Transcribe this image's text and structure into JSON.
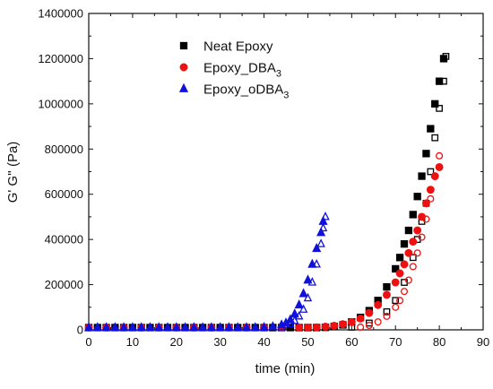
{
  "chart_data": {
    "type": "scatter",
    "xlabel": "time (min)",
    "ylabel": "G' G'' (Pa)",
    "xlim": [
      0,
      90
    ],
    "ylim": [
      0,
      1400000
    ],
    "x_ticks": [
      0,
      10,
      20,
      30,
      40,
      50,
      60,
      70,
      80,
      90
    ],
    "y_ticks": [
      0,
      200000,
      400000,
      600000,
      800000,
      1000000,
      1200000,
      1400000
    ],
    "grid": false,
    "legend_position": "top-right",
    "series": [
      {
        "name": "Neat Epoxy",
        "color": "#000000",
        "marker": "square",
        "storage_modulus": [
          [
            0,
            10000
          ],
          [
            2,
            10000
          ],
          [
            4,
            10000
          ],
          [
            6,
            10000
          ],
          [
            8,
            10000
          ],
          [
            10,
            10000
          ],
          [
            12,
            10000
          ],
          [
            14,
            10000
          ],
          [
            16,
            10000
          ],
          [
            18,
            10000
          ],
          [
            20,
            10000
          ],
          [
            22,
            10000
          ],
          [
            24,
            10000
          ],
          [
            26,
            10000
          ],
          [
            28,
            10000
          ],
          [
            30,
            10000
          ],
          [
            32,
            10000
          ],
          [
            34,
            10000
          ],
          [
            36,
            10000
          ],
          [
            38,
            10000
          ],
          [
            40,
            10000
          ],
          [
            42,
            10000
          ],
          [
            44,
            10000
          ],
          [
            46,
            10000
          ],
          [
            48,
            10000
          ],
          [
            50,
            10000
          ],
          [
            52,
            10000
          ],
          [
            54,
            11000
          ],
          [
            56,
            15000
          ],
          [
            58,
            22000
          ],
          [
            60,
            35000
          ],
          [
            62,
            55000
          ],
          [
            64,
            85000
          ],
          [
            66,
            130000
          ],
          [
            68,
            190000
          ],
          [
            70,
            270000
          ],
          [
            71,
            320000
          ],
          [
            72,
            380000
          ],
          [
            73,
            440000
          ],
          [
            74,
            510000
          ],
          [
            75,
            590000
          ],
          [
            76,
            680000
          ],
          [
            77,
            780000
          ],
          [
            78,
            890000
          ],
          [
            79,
            1000000
          ],
          [
            80,
            1100000
          ],
          [
            81,
            1200000
          ]
        ],
        "loss_modulus": [
          [
            60,
            12000
          ],
          [
            64,
            30000
          ],
          [
            68,
            80000
          ],
          [
            70,
            130000
          ],
          [
            72,
            210000
          ],
          [
            74,
            320000
          ],
          [
            75,
            400000
          ],
          [
            76,
            480000
          ],
          [
            77,
            560000
          ],
          [
            78,
            700000
          ],
          [
            79,
            850000
          ],
          [
            80,
            980000
          ],
          [
            81,
            1100000
          ],
          [
            81.5,
            1210000
          ]
        ]
      },
      {
        "name": "Epoxy_DBA",
        "name_subscript": "3",
        "color": "#ee1111",
        "marker": "circle",
        "storage_modulus": [
          [
            0,
            10000
          ],
          [
            4,
            10000
          ],
          [
            8,
            10000
          ],
          [
            12,
            10000
          ],
          [
            16,
            10000
          ],
          [
            20,
            10000
          ],
          [
            24,
            10000
          ],
          [
            28,
            10000
          ],
          [
            32,
            10000
          ],
          [
            36,
            10000
          ],
          [
            40,
            10000
          ],
          [
            44,
            10000
          ],
          [
            48,
            10000
          ],
          [
            50,
            10000
          ],
          [
            52,
            11000
          ],
          [
            54,
            14000
          ],
          [
            56,
            18000
          ],
          [
            58,
            25000
          ],
          [
            60,
            35000
          ],
          [
            62,
            50000
          ],
          [
            64,
            75000
          ],
          [
            66,
            110000
          ],
          [
            68,
            155000
          ],
          [
            70,
            210000
          ],
          [
            71,
            250000
          ],
          [
            72,
            290000
          ],
          [
            73,
            340000
          ],
          [
            74,
            390000
          ],
          [
            75,
            440000
          ],
          [
            76,
            500000
          ],
          [
            77,
            560000
          ],
          [
            78,
            620000
          ],
          [
            79,
            680000
          ],
          [
            80,
            720000
          ]
        ],
        "loss_modulus": [
          [
            62,
            12000
          ],
          [
            64,
            20000
          ],
          [
            66,
            35000
          ],
          [
            68,
            60000
          ],
          [
            70,
            100000
          ],
          [
            71,
            130000
          ],
          [
            72,
            170000
          ],
          [
            73,
            220000
          ],
          [
            74,
            280000
          ],
          [
            75,
            340000
          ],
          [
            76,
            410000
          ],
          [
            77,
            490000
          ],
          [
            78,
            580000
          ],
          [
            79,
            680000
          ],
          [
            80,
            770000
          ]
        ]
      },
      {
        "name": "Epoxy_oDBA",
        "name_subscript": "3",
        "color": "#1111dd",
        "marker": "triangle",
        "storage_modulus": [
          [
            0,
            10000
          ],
          [
            2,
            10000
          ],
          [
            4,
            10000
          ],
          [
            6,
            10000
          ],
          [
            8,
            10000
          ],
          [
            10,
            10000
          ],
          [
            12,
            10000
          ],
          [
            14,
            10000
          ],
          [
            16,
            10000
          ],
          [
            18,
            10000
          ],
          [
            20,
            10000
          ],
          [
            22,
            10000
          ],
          [
            24,
            10000
          ],
          [
            26,
            10000
          ],
          [
            28,
            10000
          ],
          [
            30,
            10000
          ],
          [
            32,
            10000
          ],
          [
            34,
            10000
          ],
          [
            36,
            10000
          ],
          [
            38,
            10000
          ],
          [
            40,
            11000
          ],
          [
            42,
            14000
          ],
          [
            44,
            22000
          ],
          [
            45,
            30000
          ],
          [
            46,
            45000
          ],
          [
            47,
            70000
          ],
          [
            48,
            110000
          ],
          [
            49,
            160000
          ],
          [
            50,
            220000
          ],
          [
            51,
            290000
          ],
          [
            52,
            360000
          ],
          [
            53,
            430000
          ],
          [
            53.5,
            480000
          ]
        ],
        "loss_modulus": [
          [
            44,
            12000
          ],
          [
            46,
            25000
          ],
          [
            47,
            40000
          ],
          [
            48,
            60000
          ],
          [
            49,
            90000
          ],
          [
            50,
            140000
          ],
          [
            51,
            210000
          ],
          [
            52,
            290000
          ],
          [
            53,
            380000
          ],
          [
            53.5,
            450000
          ],
          [
            54,
            500000
          ]
        ]
      }
    ]
  }
}
